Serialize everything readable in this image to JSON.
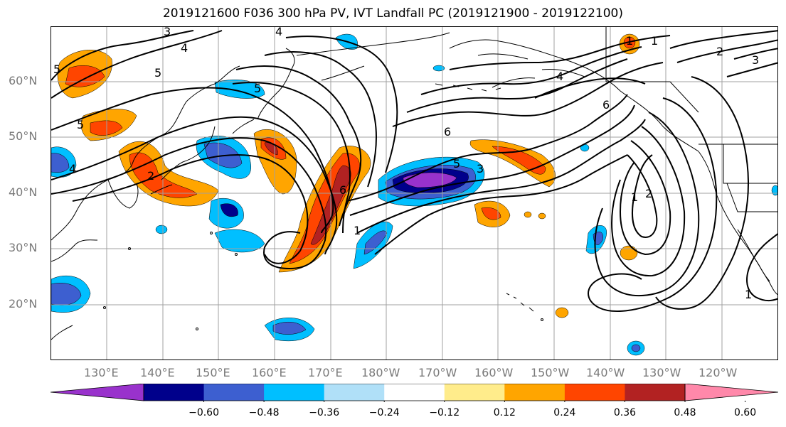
{
  "title": "2019121600 F036 300 hPa PV, IVT Landfall PC (2019121900 - 2019122100)",
  "lat_labels": [
    "60°N",
    "50°N",
    "40°N",
    "30°N",
    "20°N"
  ],
  "lon_labels": [
    "130°E",
    "140°E",
    "150°E",
    "160°E",
    "170°E",
    "180°W",
    "170°W",
    "160°W",
    "150°W",
    "140°W",
    "130°W",
    "120°W"
  ],
  "contour_labels": [
    "3",
    "4",
    "5",
    "4",
    "2",
    "5",
    "6",
    "5",
    "3",
    "1",
    "6",
    "4",
    "6",
    "5",
    "1",
    "1",
    "1",
    "3",
    "1",
    "2",
    "5",
    "2",
    "4"
  ],
  "colorbar": {
    "ticks": [
      "−0.60",
      "−0.48",
      "−0.36",
      "−0.24",
      "−0.12",
      "0.12",
      "0.24",
      "0.36",
      "0.48",
      "0.60"
    ],
    "colors": [
      "#9932cc",
      "#00008b",
      "#3d5fd0",
      "#00bfff",
      "#b0e0f8",
      "#ffffff",
      "#ffec8b",
      "#ffa500",
      "#ff4500",
      "#b22222",
      "#ff88aa"
    ]
  },
  "colors": {
    "contour": "#000000",
    "grid": "#a0a0a0",
    "coast": "#000000"
  }
}
